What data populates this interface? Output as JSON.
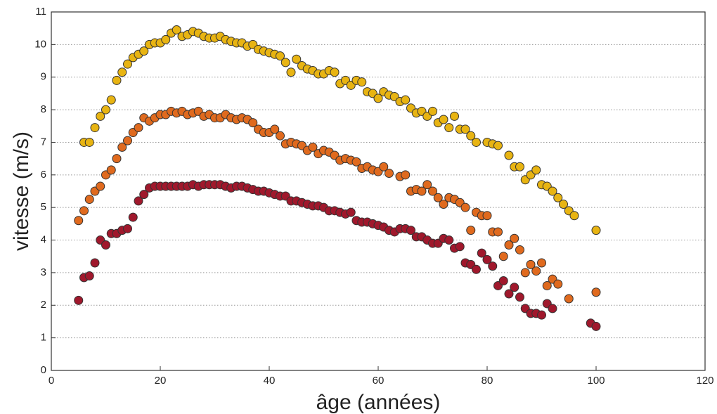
{
  "chart_data": {
    "type": "scatter",
    "x_label": "âge (années)",
    "y_label": "vitesse (m/s)",
    "xlim": [
      0,
      120
    ],
    "ylim": [
      0,
      11
    ],
    "xticks": [
      0,
      20,
      40,
      60,
      80,
      100,
      120
    ],
    "yticks": [
      0,
      1,
      2,
      3,
      4,
      5,
      6,
      7,
      8,
      9,
      10,
      11
    ],
    "grid": true,
    "series": [
      {
        "color": "#e8b412",
        "x": [
          6,
          7,
          8,
          9,
          10,
          11,
          12,
          13,
          14,
          15,
          16,
          17,
          18,
          19,
          20,
          21,
          22,
          23,
          24,
          25,
          26,
          27,
          28,
          29,
          30,
          31,
          32,
          33,
          34,
          35,
          36,
          37,
          38,
          39,
          40,
          41,
          42,
          43,
          44,
          45,
          46,
          47,
          48,
          49,
          50,
          51,
          52,
          53,
          54,
          55,
          56,
          57,
          58,
          59,
          60,
          61,
          62,
          63,
          64,
          65,
          66,
          67,
          68,
          69,
          70,
          71,
          72,
          73,
          74,
          75,
          76,
          77,
          78,
          80,
          81,
          82,
          84,
          85,
          86,
          87,
          88,
          89,
          90,
          91,
          92,
          93,
          94,
          95,
          96,
          100
        ],
        "values": [
          7.0,
          7.0,
          7.45,
          7.8,
          8.0,
          8.3,
          8.9,
          9.15,
          9.4,
          9.6,
          9.7,
          9.8,
          10.0,
          10.05,
          10.05,
          10.15,
          10.35,
          10.45,
          10.25,
          10.3,
          10.4,
          10.35,
          10.25,
          10.2,
          10.2,
          10.25,
          10.15,
          10.1,
          10.05,
          10.05,
          9.95,
          10.0,
          9.85,
          9.8,
          9.75,
          9.7,
          9.65,
          9.45,
          9.15,
          9.55,
          9.35,
          9.25,
          9.2,
          9.1,
          9.1,
          9.2,
          9.15,
          8.8,
          8.9,
          8.75,
          8.9,
          8.85,
          8.55,
          8.5,
          8.35,
          8.55,
          8.45,
          8.4,
          8.25,
          8.3,
          8.05,
          7.9,
          7.95,
          7.8,
          7.95,
          7.6,
          7.7,
          7.45,
          7.8,
          7.4,
          7.4,
          7.2,
          7.0,
          7.0,
          6.95,
          6.9,
          6.6,
          6.25,
          6.25,
          5.85,
          6.0,
          6.15,
          5.7,
          5.65,
          5.5,
          5.3,
          5.1,
          4.9,
          4.75,
          4.3
        ]
      },
      {
        "color": "#e06a1e",
        "x": [
          5,
          6,
          7,
          8,
          9,
          10,
          11,
          12,
          13,
          14,
          15,
          16,
          17,
          18,
          19,
          20,
          21,
          22,
          23,
          24,
          25,
          26,
          27,
          28,
          29,
          30,
          31,
          32,
          33,
          34,
          35,
          36,
          37,
          38,
          39,
          40,
          41,
          42,
          43,
          44,
          45,
          46,
          47,
          48,
          49,
          50,
          51,
          52,
          53,
          54,
          55,
          56,
          57,
          58,
          59,
          60,
          61,
          62,
          64,
          65,
          66,
          67,
          68,
          69,
          70,
          71,
          72,
          73,
          74,
          75,
          76,
          77,
          78,
          79,
          80,
          81,
          82,
          83,
          84,
          85,
          86,
          87,
          88,
          89,
          90,
          91,
          92,
          93,
          95,
          100
        ],
        "values": [
          4.6,
          4.9,
          5.25,
          5.5,
          5.65,
          6.0,
          6.15,
          6.5,
          6.85,
          7.05,
          7.3,
          7.45,
          7.75,
          7.65,
          7.75,
          7.85,
          7.85,
          7.95,
          7.9,
          7.95,
          7.85,
          7.9,
          7.95,
          7.8,
          7.85,
          7.75,
          7.75,
          7.85,
          7.75,
          7.7,
          7.75,
          7.7,
          7.6,
          7.4,
          7.3,
          7.3,
          7.4,
          7.2,
          6.95,
          7.0,
          6.95,
          6.9,
          6.75,
          6.85,
          6.65,
          6.75,
          6.7,
          6.6,
          6.45,
          6.5,
          6.45,
          6.4,
          6.2,
          6.25,
          6.15,
          6.1,
          6.25,
          6.05,
          5.95,
          6.0,
          5.5,
          5.55,
          5.5,
          5.7,
          5.5,
          5.3,
          5.1,
          5.3,
          5.25,
          5.15,
          5.0,
          4.3,
          4.85,
          4.75,
          4.75,
          4.25,
          4.25,
          3.5,
          3.85,
          4.05,
          3.7,
          3.0,
          3.25,
          3.05,
          3.3,
          2.6,
          2.8,
          2.65,
          2.2,
          2.4
        ]
      },
      {
        "color": "#a0182c",
        "x": [
          5,
          6,
          7,
          8,
          9,
          10,
          11,
          12,
          13,
          14,
          15,
          16,
          17,
          18,
          19,
          20,
          21,
          22,
          23,
          24,
          25,
          26,
          27,
          28,
          29,
          30,
          31,
          32,
          33,
          34,
          35,
          36,
          37,
          38,
          39,
          40,
          41,
          42,
          43,
          44,
          45,
          46,
          47,
          48,
          49,
          50,
          51,
          52,
          53,
          54,
          55,
          56,
          57,
          58,
          59,
          60,
          61,
          62,
          63,
          64,
          65,
          66,
          67,
          68,
          69,
          70,
          71,
          72,
          73,
          74,
          75,
          76,
          77,
          78,
          79,
          80,
          81,
          82,
          83,
          84,
          85,
          86,
          87,
          88,
          89,
          90,
          91,
          92,
          99,
          100
        ],
        "values": [
          2.15,
          2.85,
          2.9,
          3.3,
          4.0,
          3.85,
          4.2,
          4.2,
          4.3,
          4.35,
          4.7,
          5.2,
          5.4,
          5.6,
          5.65,
          5.65,
          5.65,
          5.65,
          5.65,
          5.65,
          5.65,
          5.7,
          5.65,
          5.7,
          5.7,
          5.7,
          5.7,
          5.65,
          5.6,
          5.65,
          5.65,
          5.6,
          5.55,
          5.5,
          5.5,
          5.45,
          5.4,
          5.35,
          5.35,
          5.2,
          5.2,
          5.15,
          5.1,
          5.05,
          5.05,
          5.0,
          4.9,
          4.9,
          4.85,
          4.8,
          4.85,
          4.6,
          4.55,
          4.55,
          4.5,
          4.45,
          4.4,
          4.3,
          4.25,
          4.35,
          4.35,
          4.3,
          4.1,
          4.1,
          4.0,
          3.9,
          3.9,
          4.05,
          4.0,
          3.75,
          3.8,
          3.3,
          3.25,
          3.1,
          3.6,
          3.4,
          3.2,
          2.6,
          2.75,
          2.35,
          2.55,
          2.25,
          1.9,
          1.75,
          1.75,
          1.7,
          2.05,
          1.9,
          1.45,
          1.35
        ]
      }
    ]
  }
}
